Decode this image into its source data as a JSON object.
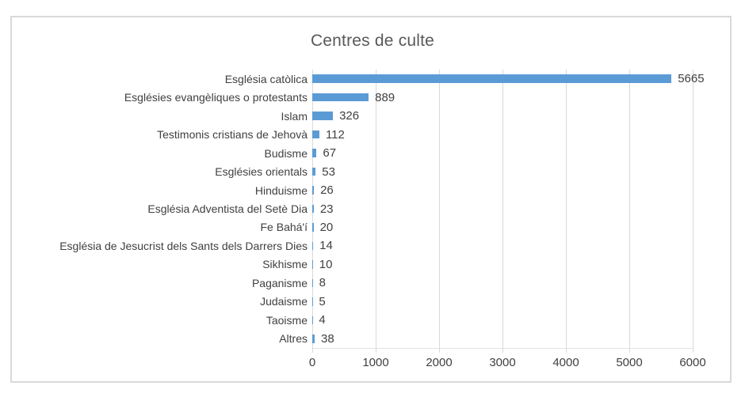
{
  "chart_data": {
    "type": "bar",
    "orientation": "horizontal",
    "title": "Centres de culte",
    "categories": [
      "Església catòlica",
      "Esglésies evangèliques o protestants",
      "Islam",
      "Testimonis cristians de Jehovà",
      "Budisme",
      "Esglésies orientals",
      "Hinduisme",
      "Església Adventista del Setè Dia",
      "Fe Bahá'í",
      "Església de Jesucrist dels Sants dels Darrers Dies",
      "Sikhisme",
      "Paganisme",
      "Judaisme",
      "Taoisme",
      "Altres"
    ],
    "values": [
      5665,
      889,
      326,
      112,
      67,
      53,
      26,
      23,
      20,
      14,
      10,
      8,
      5,
      4,
      38
    ],
    "data_labels": [
      5665,
      889,
      326,
      112,
      67,
      53,
      26,
      23,
      20,
      14,
      10,
      8,
      5,
      4,
      38
    ],
    "xlabel": "",
    "ylabel": "",
    "xlim": [
      0,
      6000
    ],
    "x_ticks": [
      0,
      1000,
      2000,
      3000,
      4000,
      5000,
      6000
    ],
    "grid": true,
    "legend": false,
    "colors": {
      "bar": "#5b9bd5",
      "gridline": "#d9d9d9",
      "title_text": "#595959",
      "label_text": "#404040",
      "frame_border": "#d9d9d9",
      "background": "#ffffff"
    }
  }
}
